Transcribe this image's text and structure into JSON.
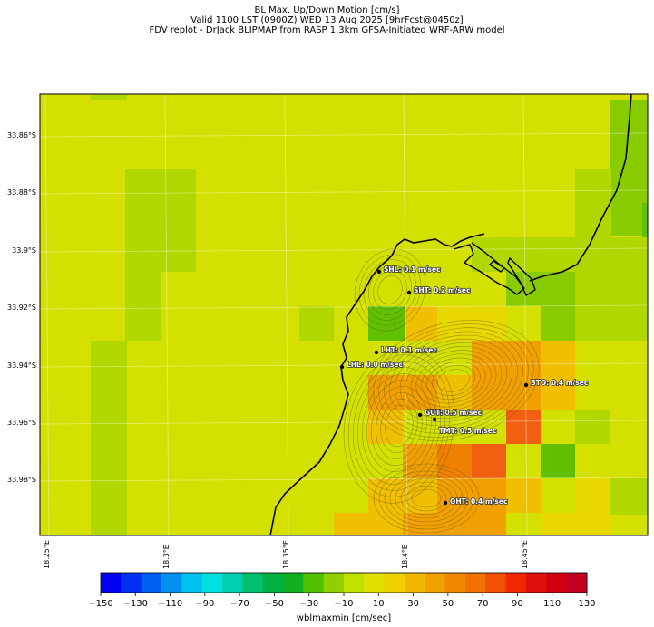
{
  "header": {
    "line1": "BL Max. Up/Down Motion [cm/s]",
    "line2": "Valid 1100 LST (0900Z) WED 13 Aug 2025 [9hrFcst@0450z]",
    "line3": "FDV replot - DrJack BLIPMAP from RASP 1.3km GFSA-Initiated WRF-ARW model"
  },
  "map": {
    "lat_ticks": [
      {
        "value": "33.86°S",
        "lat": -33.86
      },
      {
        "value": "33.88°S",
        "lat": -33.88
      },
      {
        "value": "33.9°S",
        "lat": -33.9
      },
      {
        "value": "33.92°S",
        "lat": -33.92
      },
      {
        "value": "33.94°S",
        "lat": -33.94
      },
      {
        "value": "33.96°S",
        "lat": -33.96
      },
      {
        "value": "33.98°S",
        "lat": -33.98
      }
    ],
    "lon_ticks": [
      {
        "value": "18.25°E",
        "lon": 18.25
      },
      {
        "value": "18.3°E",
        "lon": 18.3
      },
      {
        "value": "18.35°E",
        "lon": 18.35
      },
      {
        "value": "18.4°E",
        "lon": 18.4
      },
      {
        "value": "18.45°E",
        "lon": 18.45
      }
    ],
    "sites": [
      {
        "code": "SHL",
        "text": "SHL: 0.1 m/sec",
        "value": 0.1
      },
      {
        "code": "SHT",
        "text": "SHT: 0.2 m/sec",
        "value": 0.2
      },
      {
        "code": "LHT",
        "text": "LHT: 0.1 m/sec",
        "value": 0.1
      },
      {
        "code": "LHL",
        "text": "LHL: 0.0 m/sec",
        "value": 0.0
      },
      {
        "code": "BTO",
        "text": "BTO: 0.4 m/sec",
        "value": 0.4
      },
      {
        "code": "GUT",
        "text": "GUT: 0.5 m/sec",
        "value": 0.5
      },
      {
        "code": "TMT",
        "text": "TMT: 0.5 m/sec",
        "value": 0.5
      },
      {
        "code": "OHT",
        "text": "OHT: 0.4 m/sec",
        "value": 0.4
      }
    ]
  },
  "colorbar": {
    "title": "wblmaxmin [cm/sec]",
    "ticks": [
      "−150",
      "−130",
      "−110",
      "−90",
      "−70",
      "−50",
      "−30",
      "−10",
      "10",
      "30",
      "50",
      "70",
      "90",
      "110",
      "130"
    ],
    "colors": [
      "#0000f0",
      "#0030f0",
      "#0060f0",
      "#0090f0",
      "#00c0f0",
      "#00e0e0",
      "#00d0b0",
      "#00c070",
      "#00b040",
      "#10b020",
      "#50c000",
      "#90d000",
      "#c0e000",
      "#e0e000",
      "#f0d000",
      "#f0b800",
      "#f0a000",
      "#f08800",
      "#f07000",
      "#f05000",
      "#f02800",
      "#e01010",
      "#d00010",
      "#c00020"
    ],
    "cell_colors": {
      "base": "#d4e100",
      "light_green": "#b0d800",
      "green": "#88cc00",
      "mid_green": "#60c000",
      "yellow": "#e8d800",
      "gold": "#f0c000",
      "orange": "#f0a000",
      "dark_orange": "#f08000",
      "red_orange": "#f06010"
    }
  }
}
